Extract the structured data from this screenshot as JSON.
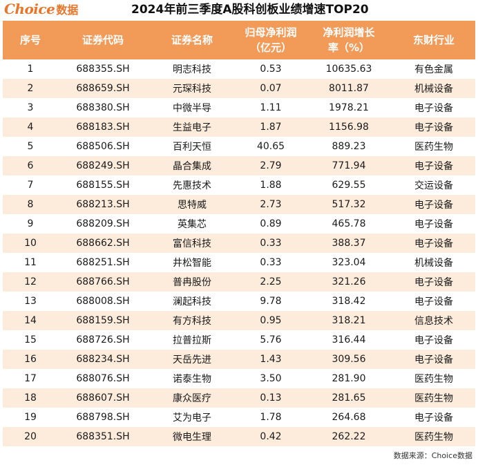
{
  "logo": {
    "mark": "Choice",
    "cn": "数据"
  },
  "title": "2024年前三季度A股科创板业绩增速TOP20",
  "table": {
    "headers": [
      "序号",
      "证券代码",
      "证券名称",
      "归母净利润\n（亿元）",
      "净利润增长\n率（%）",
      "东财行业"
    ],
    "rows": [
      [
        "1",
        "688355.SH",
        "明志科技",
        "0.53",
        "10635.63",
        "有色金属"
      ],
      [
        "2",
        "688659.SH",
        "元琛科技",
        "0.07",
        "8011.87",
        "机械设备"
      ],
      [
        "3",
        "688380.SH",
        "中微半导",
        "1.11",
        "1978.21",
        "电子设备"
      ],
      [
        "4",
        "688183.SH",
        "生益电子",
        "1.87",
        "1156.98",
        "电子设备"
      ],
      [
        "5",
        "688506.SH",
        "百利天恒",
        "40.65",
        "889.23",
        "医药生物"
      ],
      [
        "6",
        "688249.SH",
        "晶合集成",
        "2.79",
        "771.94",
        "电子设备"
      ],
      [
        "7",
        "688155.SH",
        "先惠技术",
        "1.88",
        "629.55",
        "交运设备"
      ],
      [
        "8",
        "688213.SH",
        "思特威",
        "2.73",
        "517.32",
        "电子设备"
      ],
      [
        "9",
        "688209.SH",
        "英集芯",
        "0.89",
        "465.78",
        "电子设备"
      ],
      [
        "10",
        "688662.SH",
        "富信科技",
        "0.33",
        "388.37",
        "电子设备"
      ],
      [
        "11",
        "688251.SH",
        "井松智能",
        "0.33",
        "323.04",
        "机械设备"
      ],
      [
        "12",
        "688766.SH",
        "普冉股份",
        "2.25",
        "321.26",
        "电子设备"
      ],
      [
        "13",
        "688008.SH",
        "澜起科技",
        "9.78",
        "318.42",
        "电子设备"
      ],
      [
        "14",
        "688159.SH",
        "有方科技",
        "0.95",
        "318.21",
        "信息技术"
      ],
      [
        "15",
        "688726.SH",
        "拉普拉斯",
        "5.76",
        "316.44",
        "电子设备"
      ],
      [
        "16",
        "688234.SH",
        "天岳先进",
        "1.43",
        "309.56",
        "电子设备"
      ],
      [
        "17",
        "688076.SH",
        "诺泰生物",
        "3.50",
        "281.90",
        "医药生物"
      ],
      [
        "18",
        "688607.SH",
        "康众医疗",
        "0.13",
        "281.65",
        "医药生物"
      ],
      [
        "19",
        "688798.SH",
        "艾为电子",
        "1.78",
        "264.68",
        "电子设备"
      ],
      [
        "20",
        "688351.SH",
        "微电生理",
        "0.42",
        "262.22",
        "医药生物"
      ]
    ]
  },
  "footer": {
    "source": "数据来源：Choice数据"
  },
  "colors": {
    "header_bg": "#f29b58",
    "stripe": "#fdecdc",
    "logo": "#e8752a"
  }
}
